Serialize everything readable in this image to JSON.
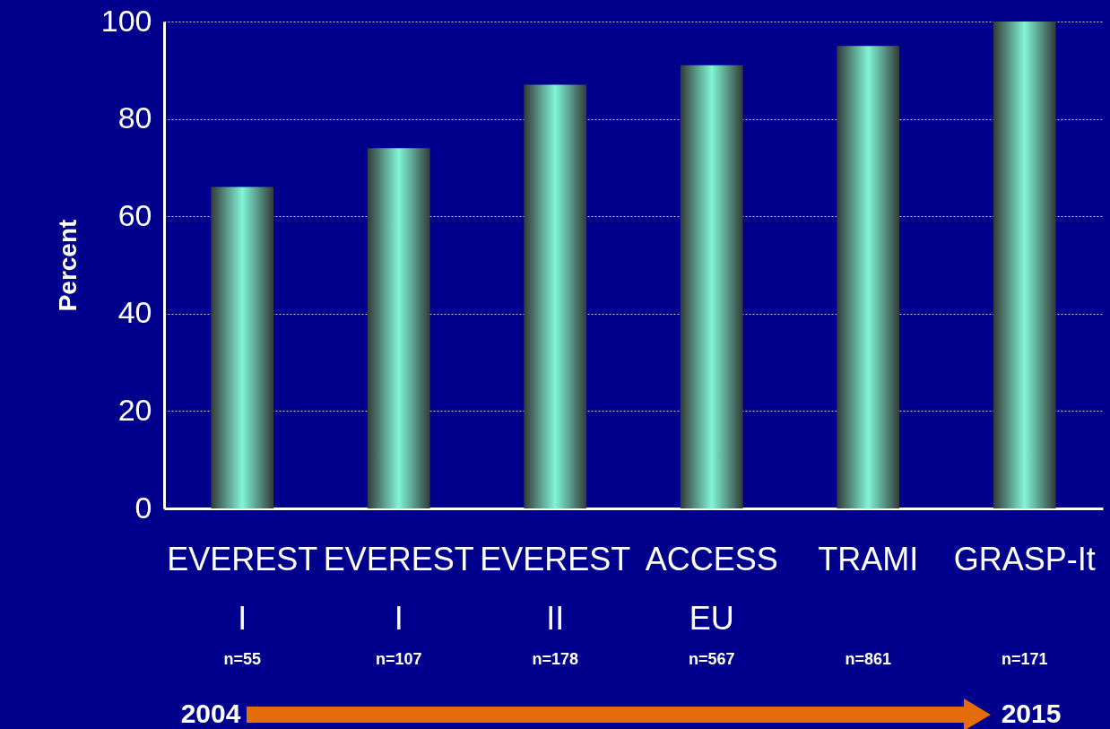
{
  "chart_data": {
    "type": "bar",
    "ylabel": "Percent",
    "categories": [
      "EVEREST I",
      "EVEREST I",
      "EVEREST II",
      "ACCESS EU",
      "TRAMI",
      "GRASP-It"
    ],
    "values": [
      66,
      74,
      87,
      91,
      95,
      100
    ],
    "color": "#80f5d5",
    "ylim": [
      0,
      100
    ],
    "yticks": [
      0,
      20,
      40,
      60,
      80,
      100
    ],
    "grid": "y",
    "annotations": [
      "n=55",
      "n=107",
      "n=178",
      "n=567",
      "n=861",
      "n=171",
      "2004",
      "2015"
    ]
  }
}
